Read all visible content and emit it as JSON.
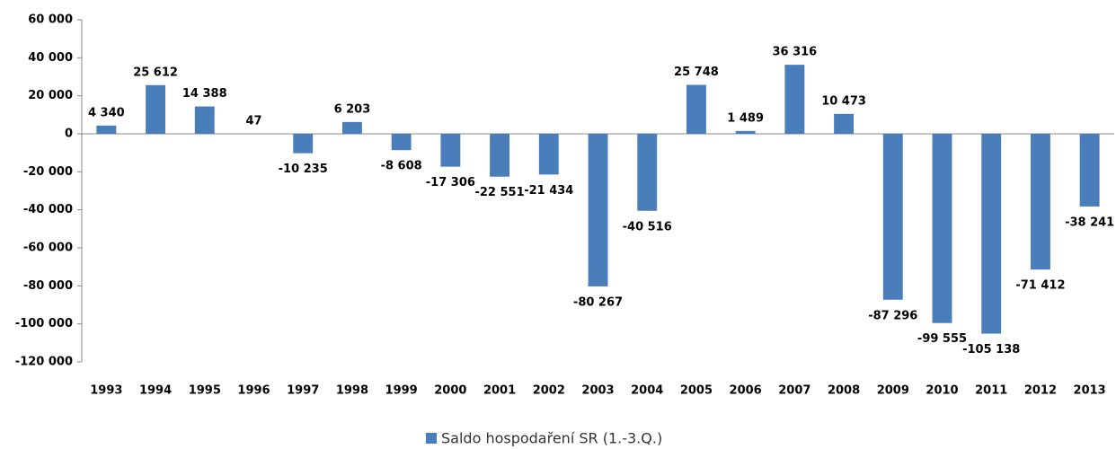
{
  "chart_data": {
    "type": "bar",
    "categories": [
      "1993",
      "1994",
      "1995",
      "1996",
      "1997",
      "1998",
      "1999",
      "2000",
      "2001",
      "2002",
      "2003",
      "2004",
      "2005",
      "2006",
      "2007",
      "2008",
      "2009",
      "2010",
      "2011",
      "2012",
      "2013"
    ],
    "series": [
      {
        "name": "Saldo hospodaření SR (1.-3.Q.)",
        "color": "#4a7ebb",
        "values": [
          4340,
          25612,
          14388,
          47,
          -10235,
          6203,
          -8608,
          -17306,
          -22551,
          -21434,
          -80267,
          -40516,
          25748,
          1489,
          36316,
          10473,
          -87296,
          -99555,
          -105138,
          -71412,
          -38241
        ],
        "value_labels": [
          "4 340",
          "25 612",
          "14 388",
          "47",
          "-10 235",
          "6 203",
          "-8 608",
          "-17 306",
          "-22 551",
          "-21 434",
          "-80 267",
          "-40 516",
          "25 748",
          "1 489",
          "36 316",
          "10 473",
          "-87 296",
          "-99 555",
          "-105 138",
          "-71 412",
          "-38 241"
        ]
      }
    ],
    "ylim": [
      -120000,
      60000
    ],
    "yticks": [
      {
        "value": 60000,
        "label": "60 000"
      },
      {
        "value": 40000,
        "label": "40 000"
      },
      {
        "value": 20000,
        "label": "20 000"
      },
      0,
      {
        "value": -20000,
        "label": "-20 000"
      },
      {
        "value": -40000,
        "label": "-40 000"
      },
      {
        "value": -60000,
        "label": "-60 000"
      },
      {
        "value": -80000,
        "label": "-80 000"
      },
      {
        "value": -100000,
        "label": "-100 000"
      },
      {
        "value": -120000,
        "label": "-120 000"
      }
    ],
    "grid": false,
    "legend": "bottom"
  }
}
